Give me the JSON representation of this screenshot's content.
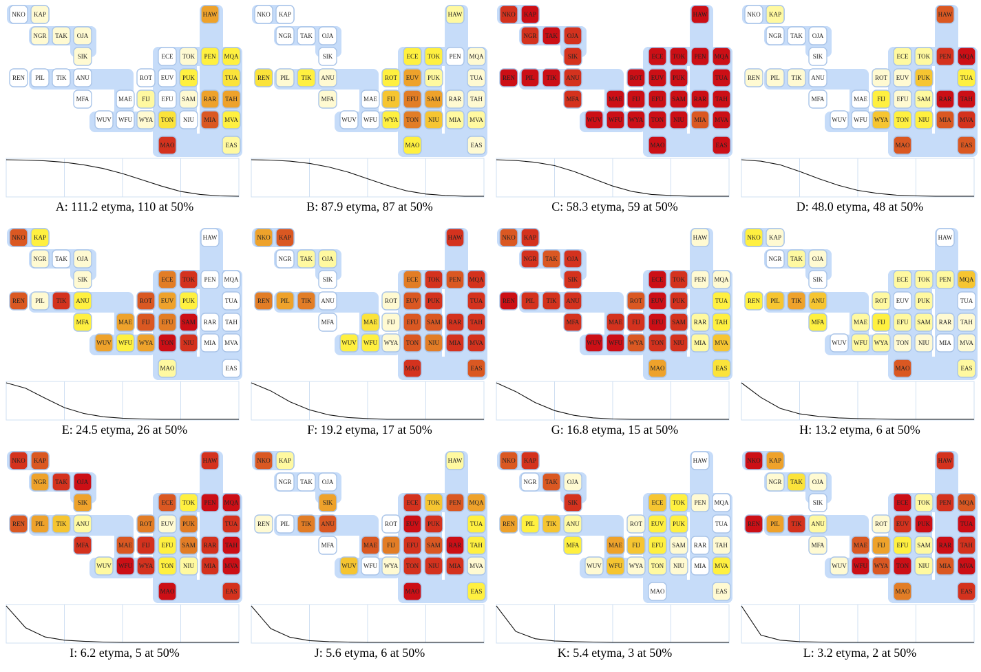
{
  "colors": {
    "band": "#c6dcf9",
    "node_border": "#a9c4e8",
    "scale": [
      "#ffffff",
      "#fffad2",
      "#fff9a0",
      "#fff040",
      "#fbe33a",
      "#f6c531",
      "#eea22b",
      "#e27d26",
      "#da5822",
      "#d4321e",
      "#cc0f16"
    ],
    "curve_grid": "#cfdff2"
  },
  "languages": [
    "NKO",
    "KAP",
    "NGR",
    "TAK",
    "OJA",
    "SIK",
    "REN",
    "PIL",
    "TIK",
    "ANU",
    "MFA",
    "MAE",
    "WUV",
    "WFU",
    "ROT",
    "FIJ",
    "WYA",
    "ECE",
    "TOK",
    "EUV",
    "PUK",
    "EFU",
    "SAM",
    "TON",
    "NIU",
    "MAO",
    "HAW",
    "PEN",
    "MQA",
    "TUA",
    "RAR",
    "TAH",
    "MIA",
    "MVA",
    "EAS"
  ],
  "panels": [
    {
      "title": "A: 111.2 etyma, 110 at 50%",
      "levels": {
        "NKO": 0,
        "KAP": 1,
        "NGR": 1,
        "TAK": 1,
        "OJA": 1,
        "SIK": 1,
        "REN": 0,
        "PIL": 0,
        "TIK": 0,
        "ANU": 0,
        "MFA": 0,
        "MAE": 0,
        "WUV": 0,
        "WFU": 0,
        "ROT": 0,
        "FIJ": 2,
        "WYA": 1,
        "ECE": 0,
        "TOK": 1,
        "EUV": 0,
        "PUK": 3,
        "EFU": 0,
        "SAM": 1,
        "TON": 4,
        "NIU": 0,
        "MAO": 9,
        "HAW": 6,
        "PEN": 3,
        "MQA": 3,
        "TUA": 4,
        "RAR": 6,
        "TAH": 6,
        "MIA": 8,
        "MVA": 3,
        "EAS": 2
      },
      "curve": [
        1,
        0.99,
        0.97,
        0.93,
        0.86,
        0.76,
        0.62,
        0.45,
        0.28,
        0.13,
        0.05,
        0.01,
        0
      ]
    },
    {
      "title": "B: 87.9 etyma, 87 at 50%",
      "levels": {
        "NKO": 0,
        "KAP": 0,
        "NGR": 0,
        "TAK": 0,
        "OJA": 0,
        "SIK": 0,
        "REN": 4,
        "PIL": 1,
        "TIK": 3,
        "ANU": 1,
        "MFA": 1,
        "MAE": 0,
        "WUV": 0,
        "WFU": 0,
        "ROT": 3,
        "FIJ": 5,
        "WYA": 3,
        "ECE": 3,
        "TOK": 3,
        "EUV": 6,
        "PUK": 2,
        "EFU": 7,
        "SAM": 6,
        "TON": 7,
        "NIU": 5,
        "MAO": 3,
        "HAW": 2,
        "PEN": 0,
        "MQA": 1,
        "TUA": 1,
        "RAR": 1,
        "TAH": 1,
        "MIA": 2,
        "MVA": 2,
        "EAS": 1
      },
      "curve": [
        1,
        0.99,
        0.96,
        0.9,
        0.8,
        0.66,
        0.48,
        0.3,
        0.15,
        0.06,
        0.02,
        0,
        0
      ]
    },
    {
      "title": "C: 58.3 etyma, 59 at 50%",
      "levels": {
        "NKO": 9,
        "KAP": 10,
        "NGR": 9,
        "TAK": 10,
        "OJA": 9,
        "SIK": 9,
        "REN": 10,
        "PIL": 10,
        "TIK": 10,
        "ANU": 9,
        "MFA": 9,
        "MAE": 10,
        "WUV": 10,
        "WFU": 10,
        "ROT": 10,
        "FIJ": 10,
        "WYA": 10,
        "ECE": 10,
        "TOK": 10,
        "EUV": 10,
        "PUK": 10,
        "EFU": 10,
        "SAM": 10,
        "TON": 10,
        "NIU": 10,
        "MAO": 10,
        "HAW": 10,
        "PEN": 10,
        "MQA": 10,
        "TUA": 10,
        "RAR": 10,
        "TAH": 10,
        "MIA": 8,
        "MVA": 10,
        "EAS": 10
      },
      "curve": [
        1,
        0.98,
        0.93,
        0.84,
        0.68,
        0.48,
        0.28,
        0.13,
        0.05,
        0.02,
        0,
        0,
        0
      ]
    },
    {
      "title": "D: 48.0 etyma, 48 at 50%",
      "levels": {
        "NKO": 0,
        "KAP": 2,
        "NGR": 0,
        "TAK": 0,
        "OJA": 0,
        "SIK": 0,
        "REN": 1,
        "PIL": 1,
        "TIK": 1,
        "ANU": 0,
        "MFA": 0,
        "MAE": 0,
        "WUV": 0,
        "WFU": 0,
        "ROT": 1,
        "FIJ": 3,
        "WYA": 5,
        "ECE": 2,
        "TOK": 2,
        "EUV": 1,
        "PUK": 5,
        "EFU": 1,
        "SAM": 2,
        "TON": 3,
        "NIU": 3,
        "MAO": 8,
        "HAW": 8,
        "PEN": 9,
        "MQA": 10,
        "TUA": 3,
        "RAR": 10,
        "TAH": 10,
        "MIA": 8,
        "MVA": 9,
        "EAS": 8
      },
      "curve": [
        1,
        0.96,
        0.86,
        0.68,
        0.48,
        0.3,
        0.16,
        0.08,
        0.03,
        0.01,
        0,
        0,
        0
      ]
    },
    {
      "title": "E: 24.5 etyma, 26 at 50%",
      "levels": {
        "NKO": 8,
        "KAP": 3,
        "NGR": 1,
        "TAK": 0,
        "OJA": 1,
        "SIK": 1,
        "REN": 8,
        "PIL": 1,
        "TIK": 9,
        "ANU": 3,
        "MFA": 3,
        "MAE": 6,
        "WUV": 6,
        "WFU": 3,
        "ROT": 8,
        "FIJ": 8,
        "WYA": 6,
        "ECE": 7,
        "TOK": 9,
        "EUV": 6,
        "PUK": 3,
        "EFU": 7,
        "SAM": 10,
        "TON": 10,
        "NIU": 9,
        "MAO": 2,
        "HAW": 0,
        "PEN": 0,
        "MQA": 0,
        "TUA": 0,
        "RAR": 0,
        "TAH": 0,
        "MIA": 0,
        "MVA": 0,
        "EAS": 0
      },
      "curve": [
        1,
        0.85,
        0.58,
        0.32,
        0.16,
        0.07,
        0.03,
        0.01,
        0,
        0,
        0,
        0,
        0
      ]
    },
    {
      "title": "F: 19.2 etyma, 17 at 50%",
      "levels": {
        "NKO": 6,
        "KAP": 8,
        "NGR": 0,
        "TAK": 2,
        "OJA": 2,
        "SIK": 0,
        "REN": 7,
        "PIL": 6,
        "TIK": 7,
        "ANU": 0,
        "MFA": 0,
        "MAE": 4,
        "WUV": 3,
        "WFU": 3,
        "ROT": 1,
        "FIJ": 1,
        "WYA": 1,
        "ECE": 7,
        "TOK": 9,
        "EUV": 8,
        "PUK": 9,
        "EFU": 8,
        "SAM": 8,
        "TON": 8,
        "NIU": 7,
        "MAO": 9,
        "HAW": 9,
        "PEN": 8,
        "MQA": 9,
        "TUA": 9,
        "RAR": 9,
        "TAH": 9,
        "MIA": 9,
        "MVA": 9,
        "EAS": 8
      },
      "curve": [
        1,
        0.78,
        0.48,
        0.26,
        0.12,
        0.05,
        0.02,
        0,
        0,
        0,
        0,
        0,
        0
      ]
    },
    {
      "title": "G: 16.8 etyma, 15 at 50%",
      "levels": {
        "NKO": 8,
        "KAP": 9,
        "NGR": 9,
        "TAK": 8,
        "OJA": 9,
        "SIK": 9,
        "REN": 10,
        "PIL": 9,
        "TIK": 9,
        "ANU": 9,
        "MFA": 9,
        "MAE": 9,
        "WUV": 10,
        "WFU": 10,
        "ROT": 8,
        "FIJ": 9,
        "WYA": 8,
        "ECE": 10,
        "TOK": 9,
        "EUV": 10,
        "PUK": 9,
        "EFU": 10,
        "SAM": 9,
        "TON": 9,
        "NIU": 9,
        "MAO": 6,
        "HAW": 1,
        "PEN": 1,
        "MQA": 1,
        "TUA": 3,
        "RAR": 2,
        "TAH": 3,
        "MIA": 2,
        "MVA": 5,
        "EAS": 4
      },
      "curve": [
        1,
        0.76,
        0.46,
        0.24,
        0.11,
        0.04,
        0.01,
        0,
        0,
        0,
        0,
        0,
        0
      ]
    },
    {
      "title": "H: 13.2 etyma, 6 at 50%",
      "levels": {
        "NKO": 3,
        "KAP": 1,
        "NGR": 0,
        "TAK": 2,
        "OJA": 1,
        "SIK": 0,
        "REN": 3,
        "PIL": 5,
        "TIK": 6,
        "ANU": 5,
        "MFA": 3,
        "MAE": 2,
        "WUV": 0,
        "WFU": 2,
        "ROT": 2,
        "FIJ": 3,
        "WYA": 2,
        "ECE": 2,
        "TOK": 2,
        "EUV": 0,
        "PUK": 2,
        "EFU": 2,
        "SAM": 2,
        "TON": 1,
        "NIU": 1,
        "MAO": 8,
        "HAW": 0,
        "PEN": 2,
        "MQA": 5,
        "TUA": 0,
        "RAR": 1,
        "TAH": 1,
        "MIA": 0,
        "MVA": 1,
        "EAS": 2
      },
      "curve": [
        1,
        0.6,
        0.3,
        0.15,
        0.08,
        0.04,
        0.02,
        0.01,
        0,
        0,
        0,
        0,
        0
      ]
    },
    {
      "title": "I: 6.2 etyma, 5 at 50%",
      "levels": {
        "NKO": 9,
        "KAP": 8,
        "NGR": 6,
        "TAK": 9,
        "OJA": 10,
        "SIK": 6,
        "REN": 8,
        "PIL": 6,
        "TIK": 5,
        "ANU": 2,
        "MFA": 9,
        "MAE": 8,
        "WUV": 2,
        "WFU": 10,
        "ROT": 7,
        "FIJ": 9,
        "WYA": 9,
        "ECE": 8,
        "TOK": 3,
        "EUV": 1,
        "PUK": 7,
        "EFU": 3,
        "SAM": 7,
        "TON": 3,
        "NIU": 2,
        "MAO": 10,
        "HAW": 9,
        "PEN": 10,
        "MQA": 10,
        "TUA": 9,
        "RAR": 9,
        "TAH": 10,
        "MIA": 9,
        "MVA": 10,
        "EAS": 9
      },
      "curve": [
        1,
        0.4,
        0.15,
        0.06,
        0.03,
        0.01,
        0,
        0,
        0,
        0,
        0,
        0,
        0
      ]
    },
    {
      "title": "J: 5.6 etyma, 6 at 50%",
      "levels": {
        "NKO": 8,
        "KAP": 2,
        "NGR": 0,
        "TAK": 0,
        "OJA": 0,
        "SIK": 6,
        "REN": 1,
        "PIL": 0,
        "TIK": 7,
        "ANU": 8,
        "MFA": 0,
        "MAE": 8,
        "WUV": 5,
        "WFU": 0,
        "ROT": 0,
        "FIJ": 7,
        "WYA": 1,
        "ECE": 9,
        "TOK": 5,
        "EUV": 10,
        "PUK": 9,
        "EFU": 9,
        "SAM": 8,
        "TON": 9,
        "NIU": 9,
        "MAO": 10,
        "HAW": 2,
        "PEN": 8,
        "MQA": 6,
        "TUA": 3,
        "RAR": 10,
        "TAH": 3,
        "MIA": 9,
        "MVA": 1,
        "EAS": 3
      },
      "curve": [
        1,
        0.38,
        0.14,
        0.05,
        0.02,
        0.01,
        0,
        0,
        0,
        0,
        0,
        0,
        0
      ]
    },
    {
      "title": "K: 5.4 etyma, 3 at 50%",
      "levels": {
        "NKO": 8,
        "KAP": 9,
        "NGR": 0,
        "TAK": 8,
        "OJA": 1,
        "SIK": 9,
        "REN": 6,
        "PIL": 3,
        "TIK": 5,
        "ANU": 2,
        "MFA": 3,
        "MAE": 6,
        "WUV": 1,
        "WFU": 5,
        "ROT": 1,
        "FIJ": 5,
        "WYA": 1,
        "ECE": 5,
        "TOK": 3,
        "EUV": 3,
        "PUK": 3,
        "EFU": 3,
        "SAM": 1,
        "TON": 2,
        "NIU": 1,
        "MAO": 0,
        "HAW": 0,
        "PEN": 1,
        "MQA": 0,
        "TUA": 0,
        "RAR": 0,
        "TAH": 1,
        "MIA": 0,
        "MVA": 3,
        "EAS": 1
      },
      "curve": [
        1,
        0.3,
        0.1,
        0.04,
        0.02,
        0.01,
        0,
        0,
        0,
        0,
        0,
        0,
        0
      ]
    },
    {
      "title": "L: 3.2 etyma, 2 at 50%",
      "levels": {
        "NKO": 10,
        "KAP": 6,
        "NGR": 1,
        "TAK": 4,
        "OJA": 1,
        "SIK": 0,
        "REN": 10,
        "PIL": 6,
        "TIK": 9,
        "ANU": 2,
        "MFA": 1,
        "MAE": 8,
        "WUV": 1,
        "WFU": 10,
        "ROT": 1,
        "FIJ": 6,
        "WYA": 8,
        "ECE": 10,
        "TOK": 2,
        "EUV": 9,
        "PUK": 10,
        "EFU": 3,
        "SAM": 2,
        "TON": 10,
        "NIU": 2,
        "MAO": 7,
        "HAW": 9,
        "PEN": 9,
        "MQA": 8,
        "TUA": 10,
        "RAR": 10,
        "TAH": 9,
        "MIA": 8,
        "MVA": 10,
        "EAS": 9
      },
      "curve": [
        1,
        0.2,
        0.06,
        0.02,
        0.01,
        0,
        0,
        0,
        0,
        0,
        0,
        0,
        0
      ]
    }
  ]
}
